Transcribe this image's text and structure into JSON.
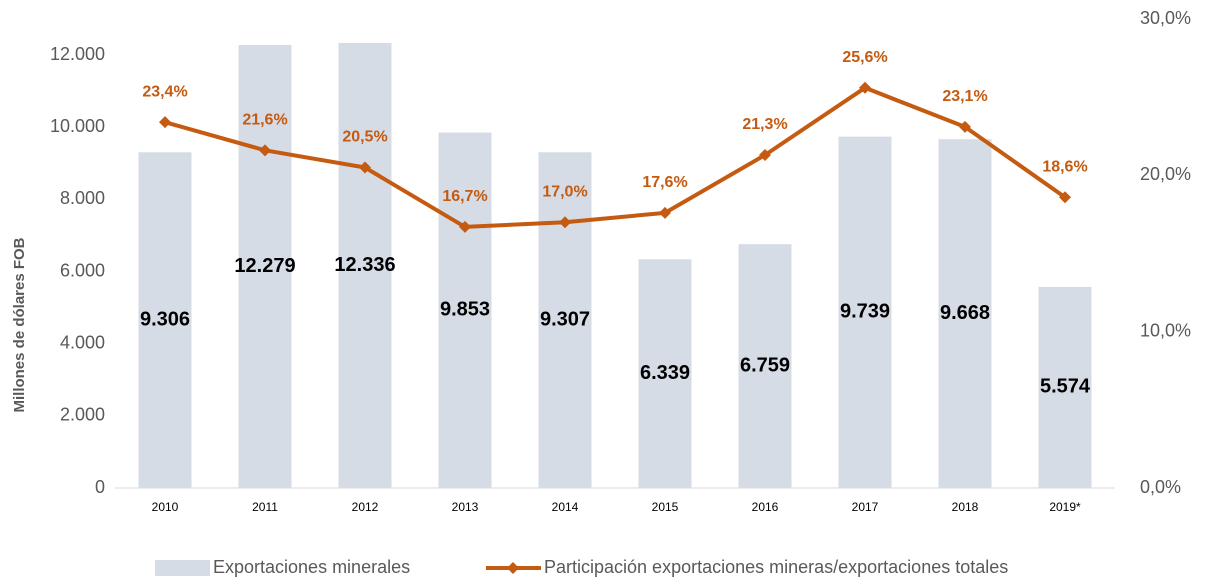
{
  "chart_data": {
    "type": "combo",
    "y_label": "Millones de dólares FOB",
    "categories": [
      "2010",
      "2011",
      "2012",
      "2013",
      "2014",
      "2015",
      "2016",
      "2017",
      "2018",
      "2019*"
    ],
    "series": [
      {
        "name": "Exportaciones minerales",
        "type": "bar",
        "color": "#d6dce5",
        "values": [
          9306,
          12279,
          12336,
          9853,
          9307,
          6339,
          6759,
          9739,
          9668,
          5574
        ],
        "value_labels": [
          "9.306",
          "12.279",
          "12.336",
          "9.853",
          "9.307",
          "6.339",
          "6.759",
          "9.739",
          "9.668",
          "5.574"
        ]
      },
      {
        "name": "Participación exportaciones mineras/exportaciones totales",
        "type": "line",
        "axis": "y2",
        "color": "#c55a11",
        "values": [
          23.4,
          21.6,
          20.5,
          16.7,
          17.0,
          17.6,
          21.3,
          25.6,
          23.1,
          18.6
        ],
        "value_labels": [
          "23,4%",
          "21,6%",
          "20,5%",
          "16,7%",
          "17,0%",
          "17,6%",
          "21,3%",
          "25,6%",
          "23,1%",
          "18,6%"
        ]
      }
    ],
    "ylim": [
      0,
      13000
    ],
    "yticks": [
      0,
      {
        "value": 2000,
        "label": "2.000"
      },
      {
        "value": 4000,
        "label": "4.000"
      },
      {
        "value": 6000,
        "label": "6.000"
      },
      {
        "value": 8000,
        "label": "8.000"
      },
      {
        "value": 10000,
        "label": "10.000"
      },
      {
        "value": 12000,
        "label": "12.000"
      }
    ],
    "y2lim": [
      0,
      30
    ],
    "y2ticks": [
      {
        "value": 0,
        "label": "0,0%"
      },
      {
        "value": 10,
        "label": "10,0%"
      },
      {
        "value": 20,
        "label": "20,0%"
      },
      {
        "value": 30,
        "label": "30,0%"
      }
    ],
    "legend": "bottom"
  }
}
